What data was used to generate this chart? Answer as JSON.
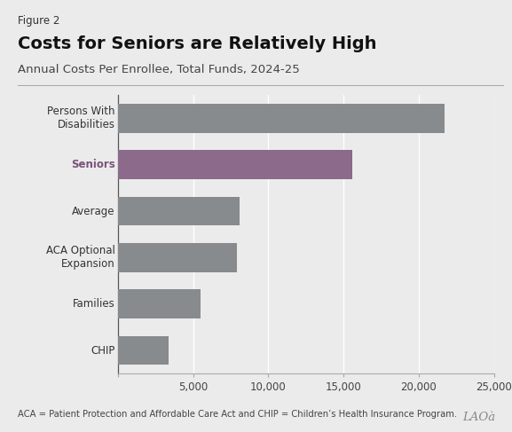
{
  "figure_label": "Figure 2",
  "title": "Costs for Seniors are Relatively High",
  "subtitle": "Annual Costs Per Enrollee, Total Funds, 2024-25",
  "footnote": "ACA = Patient Protection and Affordable Care Act and CHIP = Children’s Health Insurance Program.",
  "categories": [
    "CHIP",
    "Families",
    "ACA Optional\nExpansion",
    "Average",
    "Seniors",
    "Persons With\nDisabilities"
  ],
  "values": [
    3400,
    5500,
    7900,
    8100,
    15600,
    21700
  ],
  "bar_colors": [
    "#888b8d",
    "#888b8d",
    "#888b8d",
    "#888b8d",
    "#8b6a8b",
    "#888b8d"
  ],
  "highlight_label": "Seniors",
  "highlight_label_color": "#7a527a",
  "default_label_color": "#333333",
  "xlim": [
    0,
    25000
  ],
  "xticks": [
    0,
    5000,
    10000,
    15000,
    20000,
    25000
  ],
  "xtick_labels": [
    "",
    "5,000",
    "10,000",
    "15,000",
    "20,000",
    "25,000"
  ],
  "background_color": "#ebebeb",
  "bar_height": 0.62,
  "title_fontsize": 14,
  "subtitle_fontsize": 9.5,
  "figure_label_fontsize": 8.5,
  "tick_fontsize": 8.5,
  "ytick_fontsize": 8.5,
  "footnote_fontsize": 7.2,
  "grid_color": "#ffffff",
  "spine_left_color": "#555555",
  "spine_bottom_color": "#aaaaaa",
  "separator_line_color": "#aaaaaa",
  "lao_color": "#888888"
}
